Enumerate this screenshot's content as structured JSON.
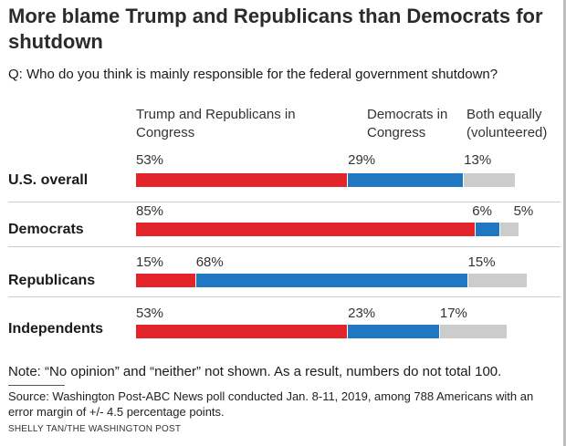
{
  "colors": {
    "trump": "#e3242b",
    "democrats": "#1f78c1",
    "both": "#cccccc"
  },
  "title": "More blame Trump and Republicans than Democrats for shutdown",
  "question": "Q: Who do you think is mainly responsible for the federal government shutdown?",
  "note": "Note: “No opinion” and “neither” not shown. As a result, numbers do not total 100.",
  "source": "Source: Washington Post-ABC News poll conducted Jan. 8-11, 2019, among 788 Americans with an error margin of +/- 4.5 percentage points.",
  "credit": "SHELLY TAN/THE WASHINGTON POST",
  "chart_data": {
    "type": "bar",
    "orientation": "horizontal-stacked",
    "title": "More blame Trump and Republicans than Democrats for shutdown",
    "categories": [
      "U.S. overall",
      "Democrats",
      "Republicans",
      "Independents"
    ],
    "series": [
      {
        "name": "Trump and Republicans in Congress",
        "values": [
          53,
          85,
          15,
          53
        ],
        "labels": [
          "53%",
          "85%",
          "15%",
          "53%"
        ]
      },
      {
        "name": "Democrats in Congress",
        "values": [
          29,
          6,
          68,
          23
        ],
        "labels": [
          "29%",
          "6%",
          "68%",
          "23%"
        ]
      },
      {
        "name": "Both equally (volunteered)",
        "values": [
          13,
          5,
          15,
          17
        ],
        "labels": [
          "13%",
          "5%",
          "15%",
          "17%"
        ]
      }
    ],
    "xlim": [
      0,
      100
    ],
    "grid": false,
    "legend": "column headers above bars"
  }
}
